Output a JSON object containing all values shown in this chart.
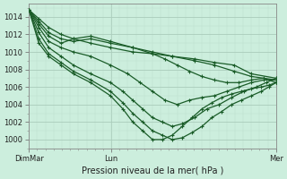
{
  "background_color": "#cceedd",
  "grid_color_major": "#aaccbb",
  "grid_color_minor": "#bbddcc",
  "line_color": "#1a5c28",
  "xlabel": "Pression niveau de la mer( hPa )",
  "ylim": [
    999.0,
    1015.5
  ],
  "yticks": [
    1000,
    1002,
    1004,
    1006,
    1008,
    1010,
    1012,
    1014
  ],
  "xtick_labels": [
    "DimMar",
    "Lun",
    "Mer"
  ],
  "xtick_positions": [
    0.0,
    0.333,
    1.0
  ],
  "figsize": [
    3.2,
    2.0
  ],
  "dpi": 100,
  "lines": [
    {
      "x": [
        0.0,
        0.04,
        0.08,
        0.13,
        0.18,
        0.25,
        0.33,
        0.42,
        0.5,
        0.58,
        0.67,
        0.75,
        0.83,
        0.9,
        1.0
      ],
      "y": [
        1014.8,
        1013.8,
        1012.8,
        1012.0,
        1011.5,
        1011.0,
        1010.5,
        1010.0,
        1009.8,
        1009.5,
        1009.2,
        1008.8,
        1008.5,
        1007.5,
        1007.0
      ]
    },
    {
      "x": [
        0.0,
        0.04,
        0.08,
        0.13,
        0.18,
        0.25,
        0.33,
        0.42,
        0.5,
        0.58,
        0.67,
        0.75,
        0.83,
        0.9,
        1.0
      ],
      "y": [
        1014.8,
        1013.5,
        1012.2,
        1011.5,
        1011.2,
        1011.5,
        1011.0,
        1010.5,
        1010.0,
        1009.5,
        1009.0,
        1008.5,
        1007.8,
        1007.2,
        1006.8
      ]
    },
    {
      "x": [
        0.0,
        0.04,
        0.08,
        0.13,
        0.18,
        0.25,
        0.33,
        0.42,
        0.5,
        0.55,
        0.6,
        0.65,
        0.7,
        0.75,
        0.8,
        0.85,
        0.9,
        0.95,
        1.0
      ],
      "y": [
        1014.8,
        1013.2,
        1011.8,
        1011.0,
        1011.5,
        1011.8,
        1011.2,
        1010.5,
        1009.8,
        1009.2,
        1008.5,
        1007.8,
        1007.2,
        1006.8,
        1006.5,
        1006.5,
        1006.8,
        1007.0,
        1006.5
      ]
    },
    {
      "x": [
        0.0,
        0.04,
        0.08,
        0.13,
        0.18,
        0.25,
        0.33,
        0.4,
        0.45,
        0.5,
        0.55,
        0.6,
        0.65,
        0.7,
        0.75,
        0.8,
        0.85,
        0.9,
        0.95,
        1.0
      ],
      "y": [
        1014.8,
        1012.8,
        1011.2,
        1010.5,
        1010.0,
        1009.5,
        1008.5,
        1007.5,
        1006.5,
        1005.5,
        1004.5,
        1004.0,
        1004.5,
        1004.8,
        1005.0,
        1005.5,
        1006.0,
        1006.5,
        1006.8,
        1006.8
      ]
    },
    {
      "x": [
        0.0,
        0.04,
        0.08,
        0.13,
        0.18,
        0.25,
        0.33,
        0.38,
        0.42,
        0.46,
        0.5,
        0.54,
        0.58,
        0.62,
        0.67,
        0.72,
        0.77,
        0.82,
        0.87,
        0.92,
        0.96,
        1.0
      ],
      "y": [
        1014.8,
        1012.2,
        1010.5,
        1009.5,
        1008.5,
        1007.5,
        1006.5,
        1005.5,
        1004.5,
        1003.5,
        1002.5,
        1002.0,
        1001.5,
        1001.8,
        1002.5,
        1003.5,
        1004.0,
        1004.8,
        1005.5,
        1006.0,
        1006.5,
        1007.0
      ]
    },
    {
      "x": [
        0.0,
        0.04,
        0.08,
        0.13,
        0.18,
        0.25,
        0.33,
        0.38,
        0.42,
        0.46,
        0.5,
        0.54,
        0.58,
        0.62,
        0.66,
        0.7,
        0.74,
        0.78,
        0.82,
        0.86,
        0.9,
        0.94,
        0.97,
        1.0
      ],
      "y": [
        1014.8,
        1011.5,
        1009.8,
        1008.8,
        1007.8,
        1006.8,
        1005.5,
        1004.2,
        1003.0,
        1002.0,
        1001.0,
        1000.5,
        1000.0,
        1000.2,
        1000.8,
        1001.5,
        1002.5,
        1003.2,
        1004.0,
        1004.5,
        1005.0,
        1005.5,
        1006.0,
        1006.5
      ]
    },
    {
      "x": [
        0.0,
        0.04,
        0.08,
        0.13,
        0.18,
        0.25,
        0.33,
        0.38,
        0.42,
        0.46,
        0.5,
        0.54,
        0.58,
        0.62,
        0.66,
        0.7,
        0.74,
        0.78,
        0.82,
        0.86,
        0.9,
        0.94,
        0.97,
        1.0
      ],
      "y": [
        1014.8,
        1011.0,
        1009.5,
        1008.5,
        1007.5,
        1006.5,
        1005.0,
        1003.5,
        1002.0,
        1001.0,
        1000.0,
        1000.0,
        1000.5,
        1001.5,
        1002.5,
        1003.5,
        1004.2,
        1004.8,
        1005.2,
        1005.5,
        1005.8,
        1006.0,
        1006.2,
        1006.5
      ]
    }
  ]
}
